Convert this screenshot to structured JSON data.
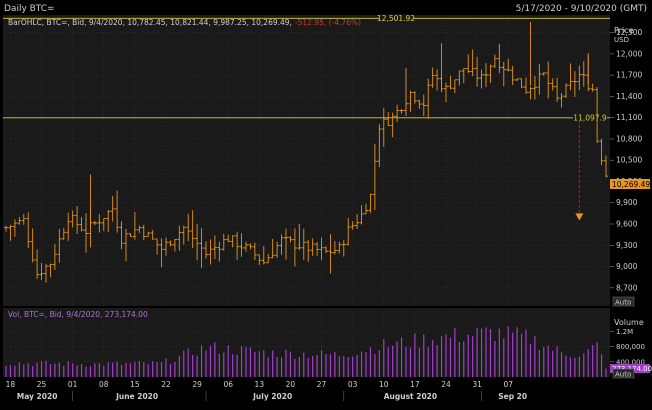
{
  "header": {
    "title": "Daily BTC=",
    "date_range": "5/17/2020 - 9/10/2020 (GMT)"
  },
  "price_panel": {
    "legend_prefix": "BarOHLC, BTC=, Bid, 9/4/2020, 10,782.45, 10,821.44, 9,987.25, 10,269.49,",
    "legend_change": "-512.95, (-4.76%)",
    "axis_title_1": "Price",
    "axis_title_2": "USD",
    "auto_label": "Auto"
  },
  "volume_panel": {
    "legend": "Vol, BTC=, Bid, 9/4/2020, 273,174.00",
    "axis_title": "Volume",
    "last_label": "273,174.00",
    "auto_label": "Auto"
  },
  "colors": {
    "background": "#000000",
    "panel": "#1a1a1a",
    "grid": "#3a3a3a",
    "bar": "#e8961e",
    "volume": "#a040c8",
    "hline": "#d8d038",
    "arrow": "#e8961e",
    "dropline": "#cc1a1a",
    "text": "#cfcfcf",
    "last_bg": "#e8961e"
  },
  "chart_data": [
    {
      "type": "ohlc",
      "series": [
        {
          "name": "BTC="
        }
      ],
      "x_ticks": [
        "18",
        "25",
        "01",
        "08",
        "15",
        "22",
        "29",
        "06",
        "13",
        "20",
        "27",
        "03",
        "10",
        "17",
        "24",
        "31",
        "07"
      ],
      "month_labels": [
        "May 2020",
        "June 2020",
        "July 2020",
        "August 2020",
        "Sep 20"
      ],
      "y_ticks": [
        8700,
        9000,
        9300,
        9600,
        9900,
        10200,
        10500,
        10800,
        11100,
        11400,
        11700,
        12000,
        12300
      ],
      "ylim": [
        8500,
        12520
      ],
      "ylabel": "Price USD",
      "horizontal_lines": [
        {
          "value": 12501.92,
          "label": "12,501.92"
        },
        {
          "value": 11097.9,
          "label": "11,097.9"
        }
      ],
      "last_value": {
        "value": 10269.49,
        "label": "10,269.49"
      },
      "knots": [
        [
          0,
          9550
        ],
        [
          4,
          9650
        ],
        [
          7,
          8900
        ],
        [
          10,
          9050
        ],
        [
          14,
          9700
        ],
        [
          18,
          9500
        ],
        [
          24,
          9820
        ],
        [
          26,
          9400
        ],
        [
          30,
          9550
        ],
        [
          35,
          9250
        ],
        [
          40,
          9550
        ],
        [
          45,
          9180
        ],
        [
          50,
          9400
        ],
        [
          55,
          9220
        ],
        [
          58,
          9060
        ],
        [
          62,
          9370
        ],
        [
          67,
          9280
        ],
        [
          72,
          9200
        ],
        [
          75,
          9250
        ],
        [
          77,
          9510
        ],
        [
          80,
          9730
        ],
        [
          82,
          10000
        ],
        [
          84,
          10990
        ],
        [
          87,
          11100
        ],
        [
          91,
          11450
        ],
        [
          94,
          11300
        ],
        [
          96,
          11700
        ],
        [
          99,
          11500
        ],
        [
          103,
          11800
        ],
        [
          107,
          11650
        ],
        [
          110,
          11950
        ],
        [
          113,
          11750
        ],
        [
          117,
          11500
        ],
        [
          121,
          11700
        ],
        [
          124,
          11350
        ],
        [
          127,
          11560
        ],
        [
          129,
          11700
        ],
        [
          130,
          11650
        ],
        [
          132,
          11500
        ],
        [
          133,
          10790
        ],
        [
          135,
          10300
        ]
      ],
      "volume_scale": {
        "ticks": [
          {
            "v": 400000,
            "label": "400,000"
          },
          {
            "v": 800000,
            "label": "800,000"
          },
          {
            "v": 1200000,
            "label": "1.2M"
          }
        ],
        "max": 1450000
      },
      "volume_knots": [
        [
          0,
          380000
        ],
        [
          20,
          350000
        ],
        [
          35,
          370000
        ],
        [
          45,
          800000
        ],
        [
          60,
          650000
        ],
        [
          75,
          600000
        ],
        [
          85,
          850000
        ],
        [
          100,
          1100000
        ],
        [
          110,
          1200000
        ],
        [
          118,
          1050000
        ],
        [
          125,
          650000
        ],
        [
          130,
          600000
        ],
        [
          133,
          850000
        ],
        [
          135,
          273174
        ]
      ]
    }
  ]
}
